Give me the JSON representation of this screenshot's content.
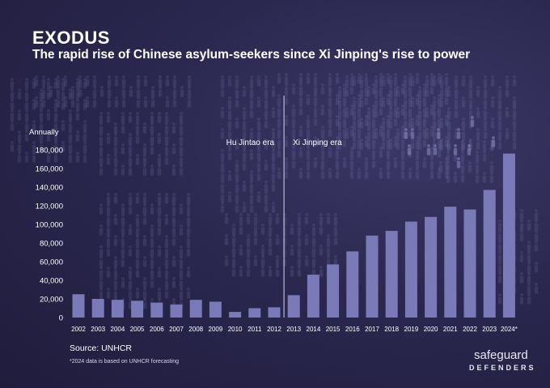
{
  "header": {
    "title": "EXODUS",
    "subtitle": "The rapid rise of Chinese asylum-seekers since Xi Jinping's rise to power"
  },
  "chart_data": {
    "type": "bar",
    "title": "EXODUS",
    "subtitle": "The rapid rise of Chinese asylum-seekers since Xi Jinping's rise to power",
    "ylabel": "Annually",
    "xlabel": "",
    "ylim": [
      0,
      180000
    ],
    "yticks": [
      0,
      20000,
      40000,
      60000,
      80000,
      100000,
      120000,
      140000,
      160000,
      180000
    ],
    "ytick_labels": [
      "0",
      "20,000",
      "40,000",
      "60,000",
      "80,000",
      "100,000",
      "120,000",
      "140,000",
      "160,000",
      "180,000"
    ],
    "categories": [
      "2002",
      "2003",
      "2004",
      "2005",
      "2006",
      "2007",
      "2008",
      "2009",
      "2010",
      "2011",
      "2012",
      "2013",
      "2014",
      "2015",
      "2016",
      "2017",
      "2018",
      "2019",
      "2020",
      "2021",
      "2022",
      "2023",
      "2024*"
    ],
    "values": [
      25000,
      20000,
      19000,
      18000,
      16000,
      14000,
      19000,
      17000,
      6000,
      10000,
      11000,
      24000,
      46000,
      57000,
      71000,
      88000,
      93000,
      103000,
      108000,
      119000,
      116000,
      137000,
      176000
    ],
    "bar_color": "#7b7ab9",
    "divider_after": "2012",
    "annotations": [
      "Hu Jintao era",
      "Xi Jinping era"
    ],
    "grid": false,
    "legend": "none"
  },
  "source": "Source: UNHCR",
  "footnote": "*2024 data is based on UNHCR forecasting",
  "logo": {
    "line1": "safeguard",
    "line2": "DEFENDERS"
  },
  "colors": {
    "background": "#2b2850",
    "bars": "#7b7ab9",
    "text": "#ffffff"
  }
}
